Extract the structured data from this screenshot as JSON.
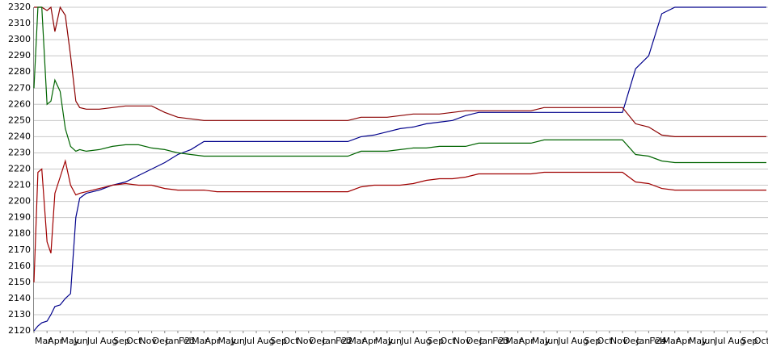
{
  "chart_data": {
    "type": "line",
    "x": [
      0,
      0.3,
      0.6,
      1,
      1.3,
      1.6,
      2,
      2.4,
      2.8,
      3.2,
      3.5,
      4,
      5,
      6,
      7,
      8,
      9,
      10,
      11,
      12,
      13,
      14,
      15,
      16,
      17,
      18,
      19,
      20,
      21,
      22,
      23,
      24,
      25,
      26,
      27,
      28,
      29,
      30,
      31,
      32,
      33,
      34,
      35,
      36,
      37,
      38,
      39,
      40,
      41,
      42,
      43,
      44,
      45,
      46,
      47,
      48,
      49,
      50,
      51,
      52,
      53,
      54,
      55,
      56
    ],
    "series": [
      {
        "color": "#00008b",
        "values": [
          2120,
          2123,
          2125,
          2126,
          2130,
          2135,
          2136,
          2140,
          2143,
          2190,
          2202,
          2205,
          2207,
          2210,
          2212,
          2216,
          2220,
          2224,
          2229,
          2232,
          2237,
          2237,
          2237,
          2237,
          2237,
          2237,
          2237,
          2237,
          2237,
          2237,
          2237,
          2237,
          2240,
          2241,
          2243,
          2245,
          2246,
          2248,
          2249,
          2250,
          2253,
          2255,
          2255,
          2255,
          2255,
          2255,
          2255,
          2255,
          2255,
          2255,
          2255,
          2255,
          2255,
          2282,
          2290,
          2316,
          2320,
          2320,
          2320,
          2320,
          2320,
          2320,
          2320,
          2320
        ]
      },
      {
        "color": "#8b0000",
        "values": [
          2320,
          2320,
          2320,
          2318,
          2320,
          2305,
          2320,
          2315,
          2290,
          2262,
          2258,
          2257,
          2257,
          2258,
          2259,
          2259,
          2259,
          2255,
          2252,
          2251,
          2250,
          2250,
          2250,
          2250,
          2250,
          2250,
          2250,
          2250,
          2250,
          2250,
          2250,
          2250,
          2252,
          2252,
          2252,
          2253,
          2254,
          2254,
          2254,
          2255,
          2256,
          2256,
          2256,
          2256,
          2256,
          2256,
          2258,
          2258,
          2258,
          2258,
          2258,
          2258,
          2258,
          2248,
          2246,
          2241,
          2240,
          2240,
          2240,
          2240,
          2240,
          2240,
          2240,
          2240
        ]
      },
      {
        "color": "#006400",
        "values": [
          2270,
          2320,
          2320,
          2260,
          2262,
          2275,
          2268,
          2245,
          2234,
          2231,
          2232,
          2231,
          2232,
          2234,
          2235,
          2235,
          2233,
          2232,
          2230,
          2229,
          2228,
          2228,
          2228,
          2228,
          2228,
          2228,
          2228,
          2228,
          2228,
          2228,
          2228,
          2228,
          2231,
          2231,
          2231,
          2232,
          2233,
          2233,
          2234,
          2234,
          2234,
          2236,
          2236,
          2236,
          2236,
          2236,
          2238,
          2238,
          2238,
          2238,
          2238,
          2238,
          2238,
          2229,
          2228,
          2225,
          2224,
          2224,
          2224,
          2224,
          2224,
          2224,
          2224,
          2224
        ]
      },
      {
        "color": "#a00000",
        "values": [
          2150,
          2218,
          2220,
          2175,
          2168,
          2205,
          2215,
          2225,
          2210,
          2204,
          2205,
          2206,
          2208,
          2210,
          2211,
          2210,
          2210,
          2208,
          2207,
          2207,
          2207,
          2206,
          2206,
          2206,
          2206,
          2206,
          2206,
          2206,
          2206,
          2206,
          2206,
          2206,
          2209,
          2210,
          2210,
          2210,
          2211,
          2213,
          2214,
          2214,
          2215,
          2217,
          2217,
          2217,
          2217,
          2217,
          2218,
          2218,
          2218,
          2218,
          2218,
          2218,
          2218,
          2212,
          2211,
          2208,
          2207,
          2207,
          2207,
          2207,
          2207,
          2207,
          2207,
          2207
        ]
      }
    ],
    "xlim": [
      0,
      56
    ],
    "xticks": [
      {
        "value": 0,
        "label": "Mar"
      },
      {
        "value": 1,
        "label": "Apr"
      },
      {
        "value": 2,
        "label": "May"
      },
      {
        "value": 3,
        "label": "Jun"
      },
      {
        "value": 4,
        "label": "Jul"
      },
      {
        "value": 5,
        "label": "Aug"
      },
      {
        "value": 6,
        "label": "Sep"
      },
      {
        "value": 7,
        "label": "Oct"
      },
      {
        "value": 8,
        "label": "Nov"
      },
      {
        "value": 9,
        "label": "Dec"
      },
      {
        "value": 10,
        "label": "Jan '21"
      },
      {
        "value": 11,
        "label": "Feb"
      },
      {
        "value": 12,
        "label": "Mar"
      },
      {
        "value": 13,
        "label": "Apr"
      },
      {
        "value": 14,
        "label": "May"
      },
      {
        "value": 15,
        "label": "Jun"
      },
      {
        "value": 16,
        "label": "Jul"
      },
      {
        "value": 17,
        "label": "Aug"
      },
      {
        "value": 18,
        "label": "Sep"
      },
      {
        "value": 19,
        "label": "Oct"
      },
      {
        "value": 20,
        "label": "Nov"
      },
      {
        "value": 21,
        "label": "Dec"
      },
      {
        "value": 22,
        "label": "Jan '22"
      },
      {
        "value": 23,
        "label": "Feb"
      },
      {
        "value": 24,
        "label": "Mar"
      },
      {
        "value": 25,
        "label": "Apr"
      },
      {
        "value": 26,
        "label": "May"
      },
      {
        "value": 27,
        "label": "Jun"
      },
      {
        "value": 28,
        "label": "Jul"
      },
      {
        "value": 29,
        "label": "Aug"
      },
      {
        "value": 30,
        "label": "Sep"
      },
      {
        "value": 31,
        "label": "Oct"
      },
      {
        "value": 32,
        "label": "Nov"
      },
      {
        "value": 33,
        "label": "Dec"
      },
      {
        "value": 34,
        "label": "Jan '23"
      },
      {
        "value": 35,
        "label": "Feb"
      },
      {
        "value": 36,
        "label": "Mar"
      },
      {
        "value": 37,
        "label": "Apr"
      },
      {
        "value": 38,
        "label": "May"
      },
      {
        "value": 39,
        "label": "Jun"
      },
      {
        "value": 40,
        "label": "Jul"
      },
      {
        "value": 41,
        "label": "Aug"
      },
      {
        "value": 42,
        "label": "Sep"
      },
      {
        "value": 43,
        "label": "Oct"
      },
      {
        "value": 44,
        "label": "Nov"
      },
      {
        "value": 45,
        "label": "Dec"
      },
      {
        "value": 46,
        "label": "Jan '24"
      },
      {
        "value": 47,
        "label": "Feb"
      },
      {
        "value": 48,
        "label": "Mar"
      },
      {
        "value": 49,
        "label": "Apr"
      },
      {
        "value": 50,
        "label": "May"
      },
      {
        "value": 51,
        "label": "Jun"
      },
      {
        "value": 52,
        "label": "Jul"
      },
      {
        "value": 53,
        "label": "Aug"
      },
      {
        "value": 54,
        "label": "Sep"
      },
      {
        "value": 55,
        "label": "Oct"
      },
      {
        "value": 56,
        "label": "Nov"
      }
    ],
    "ylim": [
      2120,
      2320
    ],
    "yticks": [
      2120,
      2130,
      2140,
      2150,
      2160,
      2170,
      2180,
      2190,
      2200,
      2210,
      2220,
      2230,
      2240,
      2250,
      2260,
      2270,
      2280,
      2290,
      2300,
      2310,
      2320
    ],
    "grid": true
  }
}
